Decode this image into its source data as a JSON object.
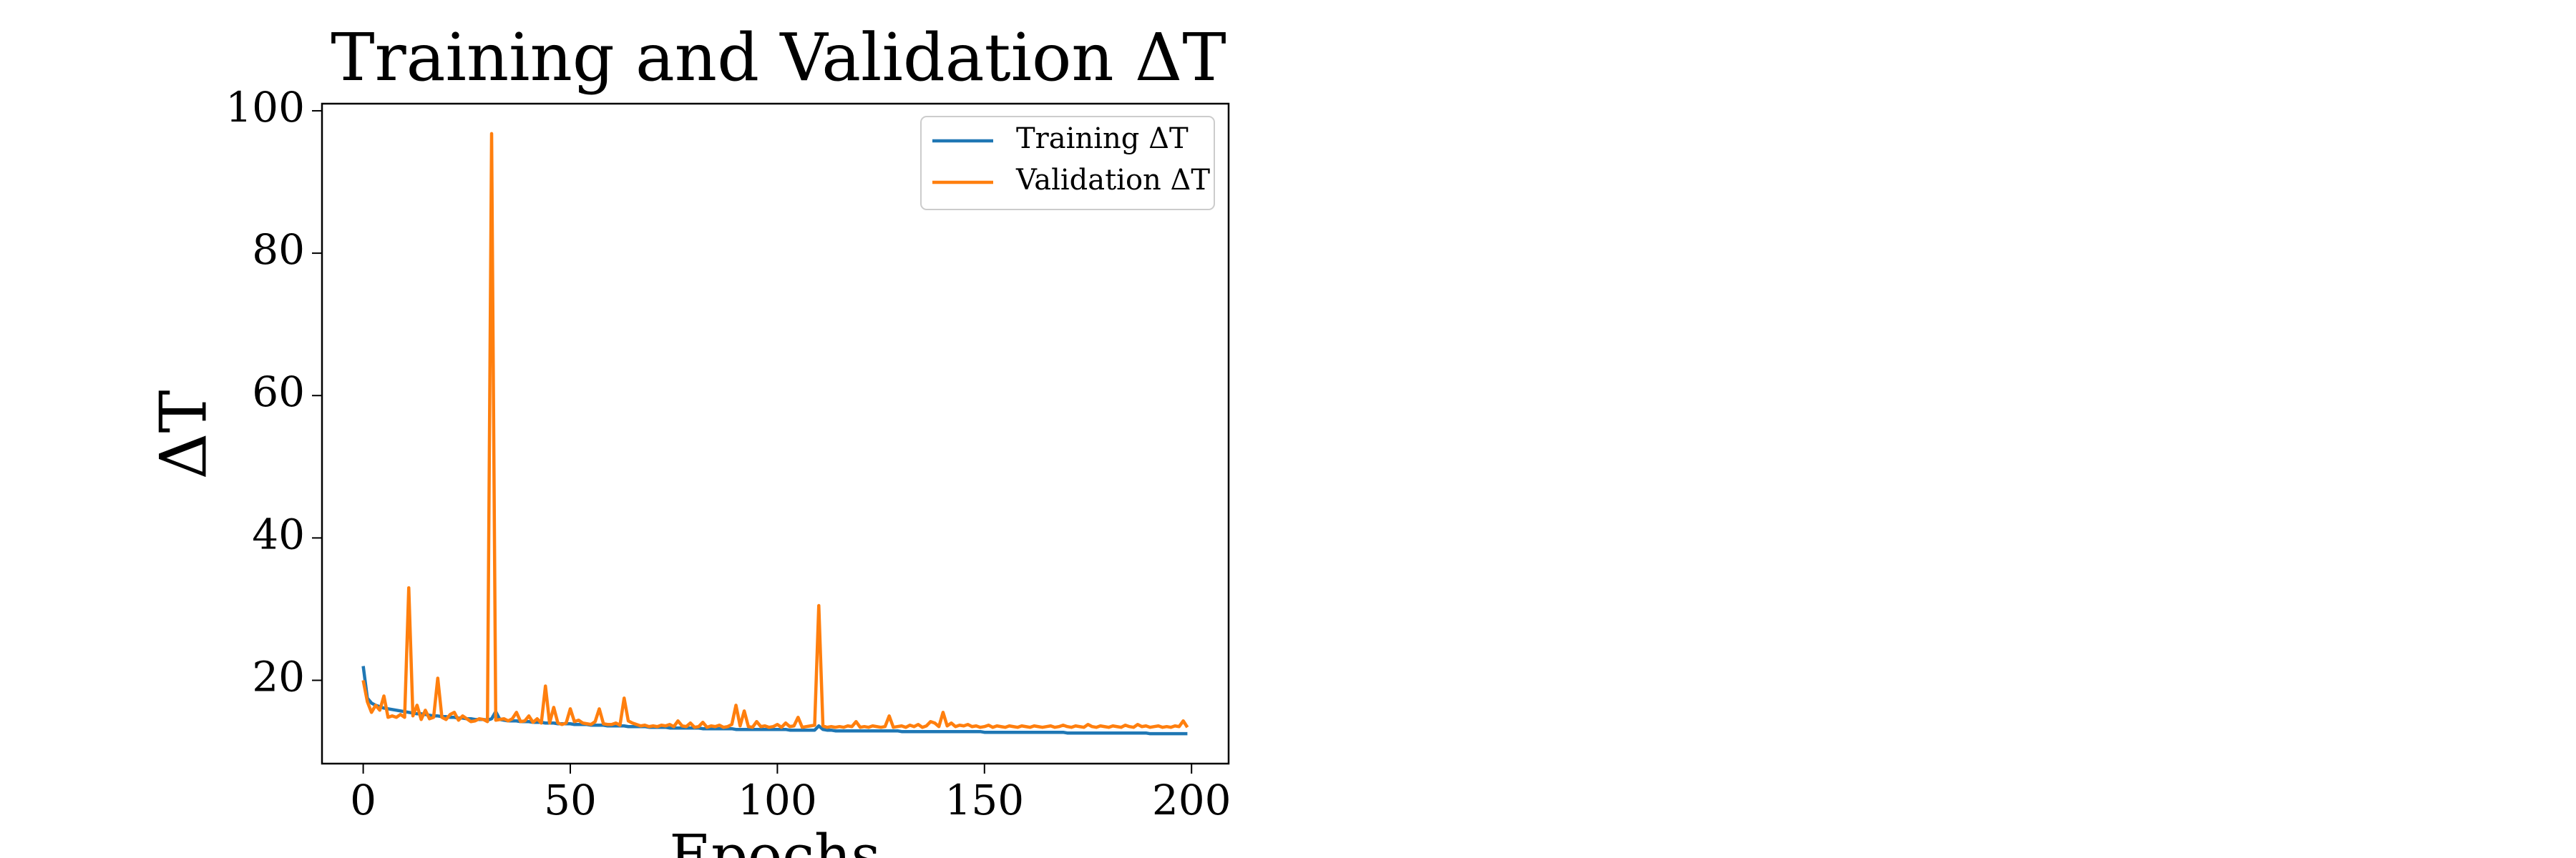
{
  "chart_data": {
    "type": "line",
    "title": "Training and Validation ΔT",
    "x_label": "Epochs",
    "y_label": "ΔT",
    "x": [
      0,
      1,
      2,
      3,
      4,
      5,
      6,
      7,
      8,
      9,
      10,
      11,
      12,
      13,
      14,
      15,
      16,
      17,
      18,
      19,
      20,
      21,
      22,
      23,
      24,
      25,
      26,
      27,
      28,
      29,
      30,
      31,
      32,
      33,
      34,
      35,
      36,
      37,
      38,
      39,
      40,
      41,
      42,
      43,
      44,
      45,
      46,
      47,
      48,
      49,
      50,
      51,
      52,
      53,
      54,
      55,
      56,
      57,
      58,
      59,
      60,
      61,
      62,
      63,
      64,
      65,
      66,
      67,
      68,
      69,
      70,
      71,
      72,
      73,
      74,
      75,
      76,
      77,
      78,
      79,
      80,
      81,
      82,
      83,
      84,
      85,
      86,
      87,
      88,
      89,
      90,
      91,
      92,
      93,
      94,
      95,
      96,
      97,
      98,
      99,
      100,
      101,
      102,
      103,
      104,
      105,
      106,
      107,
      108,
      109,
      110,
      111,
      112,
      113,
      114,
      115,
      116,
      117,
      118,
      119,
      120,
      121,
      122,
      123,
      124,
      125,
      126,
      127,
      128,
      129,
      130,
      131,
      132,
      133,
      134,
      135,
      136,
      137,
      138,
      139,
      140,
      141,
      142,
      143,
      144,
      145,
      146,
      147,
      148,
      149,
      150,
      151,
      152,
      153,
      154,
      155,
      156,
      157,
      158,
      159,
      160,
      161,
      162,
      163,
      164,
      165,
      166,
      167,
      168,
      169,
      170,
      171,
      172,
      173,
      174,
      175,
      176,
      177,
      178,
      179,
      180,
      181,
      182,
      183,
      184,
      185,
      186,
      187,
      188,
      189,
      190,
      191,
      192,
      193,
      194,
      195,
      196,
      197,
      198,
      199
    ],
    "series": [
      {
        "name": "Training ΔT",
        "color": "#1f77b4",
        "values": [
          22.0,
          17.5,
          16.8,
          16.5,
          16.3,
          16.1,
          16.0,
          15.9,
          15.8,
          15.7,
          15.6,
          15.5,
          15.4,
          15.3,
          15.3,
          15.2,
          15.1,
          15.0,
          15.0,
          14.9,
          14.9,
          14.8,
          14.8,
          14.7,
          14.7,
          14.6,
          14.6,
          14.5,
          14.5,
          14.5,
          14.4,
          14.6,
          15.6,
          14.5,
          14.4,
          14.3,
          14.3,
          14.3,
          14.2,
          14.2,
          14.2,
          14.1,
          14.1,
          14.1,
          14.0,
          14.0,
          14.0,
          13.9,
          13.9,
          13.9,
          13.9,
          13.8,
          13.8,
          13.8,
          13.8,
          13.7,
          13.7,
          13.7,
          13.7,
          13.6,
          13.6,
          13.6,
          13.6,
          13.6,
          13.5,
          13.5,
          13.5,
          13.5,
          13.5,
          13.4,
          13.4,
          13.4,
          13.4,
          13.4,
          13.3,
          13.3,
          13.3,
          13.3,
          13.3,
          13.3,
          13.3,
          13.3,
          13.2,
          13.2,
          13.2,
          13.2,
          13.2,
          13.2,
          13.2,
          13.2,
          13.1,
          13.1,
          13.1,
          13.1,
          13.1,
          13.1,
          13.1,
          13.1,
          13.1,
          13.1,
          13.1,
          13.1,
          13.1,
          13.0,
          13.0,
          13.0,
          13.0,
          13.0,
          13.0,
          13.0,
          13.6,
          13.1,
          13.0,
          13.0,
          12.9,
          12.9,
          12.9,
          12.9,
          12.9,
          12.9,
          12.9,
          12.9,
          12.9,
          12.9,
          12.9,
          12.9,
          12.9,
          12.9,
          12.9,
          12.9,
          12.8,
          12.8,
          12.8,
          12.8,
          12.8,
          12.8,
          12.8,
          12.8,
          12.8,
          12.8,
          12.8,
          12.8,
          12.8,
          12.8,
          12.8,
          12.8,
          12.8,
          12.8,
          12.8,
          12.8,
          12.7,
          12.7,
          12.7,
          12.7,
          12.7,
          12.7,
          12.7,
          12.7,
          12.7,
          12.7,
          12.7,
          12.7,
          12.7,
          12.7,
          12.7,
          12.7,
          12.7,
          12.7,
          12.7,
          12.7,
          12.6,
          12.6,
          12.6,
          12.6,
          12.6,
          12.6,
          12.6,
          12.6,
          12.6,
          12.6,
          12.6,
          12.6,
          12.6,
          12.6,
          12.6,
          12.6,
          12.6,
          12.6,
          12.6,
          12.6,
          12.5,
          12.5,
          12.5,
          12.5,
          12.5,
          12.5,
          12.5,
          12.5,
          12.5,
          12.5
        ]
      },
      {
        "name": "Validation ΔT",
        "color": "#ff7f0e",
        "values": [
          20.0,
          17.0,
          15.5,
          16.5,
          15.8,
          17.8,
          14.8,
          15.0,
          14.8,
          15.2,
          14.8,
          33.0,
          15.0,
          16.5,
          14.5,
          15.8,
          14.6,
          14.8,
          20.3,
          14.8,
          14.5,
          15.2,
          15.5,
          14.4,
          15.0,
          14.6,
          14.2,
          14.3,
          14.6,
          14.5,
          14.2,
          96.8,
          14.4,
          14.5,
          14.6,
          14.3,
          14.6,
          15.5,
          14.2,
          14.3,
          15.0,
          14.1,
          14.6,
          14.0,
          19.2,
          14.0,
          16.2,
          14.0,
          13.8,
          14.0,
          16.0,
          14.2,
          14.4,
          14.0,
          13.9,
          13.8,
          14.2,
          16.0,
          13.9,
          13.8,
          13.8,
          14.0,
          13.7,
          17.5,
          14.3,
          14.0,
          13.8,
          13.6,
          13.7,
          13.5,
          13.6,
          13.5,
          13.7,
          13.6,
          13.8,
          13.5,
          14.3,
          13.6,
          13.5,
          14.0,
          13.4,
          13.5,
          14.1,
          13.4,
          13.6,
          13.5,
          13.7,
          13.4,
          13.5,
          13.8,
          16.5,
          13.6,
          15.7,
          13.5,
          13.4,
          14.2,
          13.5,
          13.6,
          13.4,
          13.5,
          13.8,
          13.4,
          14.0,
          13.5,
          13.6,
          14.8,
          13.4,
          13.5,
          13.6,
          13.7,
          30.5,
          13.6,
          13.4,
          13.5,
          13.4,
          13.5,
          13.4,
          13.6,
          13.5,
          14.2,
          13.4,
          13.5,
          13.4,
          13.6,
          13.5,
          13.4,
          13.5,
          15.0,
          13.4,
          13.5,
          13.6,
          13.4,
          13.7,
          13.5,
          13.8,
          13.4,
          13.6,
          14.2,
          14.0,
          13.5,
          15.5,
          13.6,
          14.0,
          13.5,
          13.7,
          13.6,
          13.8,
          13.5,
          13.6,
          13.4,
          13.5,
          13.7,
          13.4,
          13.6,
          13.5,
          13.4,
          13.6,
          13.5,
          13.4,
          13.6,
          13.5,
          13.4,
          13.6,
          13.5,
          13.4,
          13.5,
          13.6,
          13.4,
          13.5,
          13.7,
          13.5,
          13.4,
          13.6,
          13.5,
          13.4,
          13.8,
          13.5,
          13.4,
          13.6,
          13.5,
          13.4,
          13.6,
          13.5,
          13.4,
          13.7,
          13.5,
          13.4,
          13.8,
          13.5,
          13.6,
          13.4,
          13.5,
          13.6,
          13.4,
          13.5,
          13.4,
          13.6,
          13.5,
          14.3,
          13.4
        ]
      }
    ],
    "xlim": [
      -9.95,
      208.95
    ],
    "ylim": [
      8.3,
      101.0
    ],
    "xticks": [
      0,
      50,
      100,
      150,
      200
    ],
    "yticks": [
      20,
      40,
      60,
      80,
      100
    ],
    "legend": "upper right",
    "grid": false
  }
}
